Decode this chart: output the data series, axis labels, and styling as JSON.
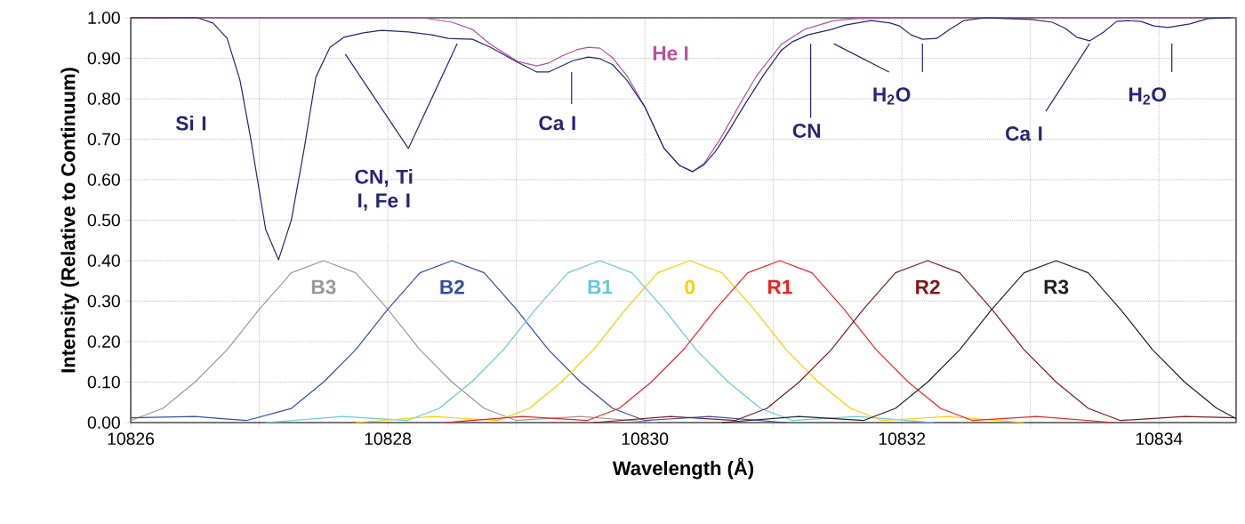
{
  "chart_data": {
    "type": "line",
    "xlabel": "Wavelength (Å)",
    "ylabel": "Intensity (Relative to Continuum)",
    "xlim": [
      10826,
      10834.6
    ],
    "ylim": [
      0,
      1
    ],
    "xticks": [
      10826,
      {
        "value": 10827,
        "label": null
      },
      10828,
      {
        "value": 10829,
        "label": null
      },
      10830,
      {
        "value": 10831,
        "label": null
      },
      10832,
      {
        "value": 10833,
        "label": null
      },
      10834
    ],
    "yticks": [
      {
        "value": 0,
        "label": "0.00"
      },
      {
        "value": 0.1,
        "label": "0.10"
      },
      {
        "value": 0.2,
        "label": "0.20"
      },
      {
        "value": 0.3,
        "label": "0.30"
      },
      {
        "value": 0.4,
        "label": "0.40"
      },
      {
        "value": 0.5,
        "label": "0.50"
      },
      {
        "value": 0.6,
        "label": "0.60"
      },
      {
        "value": 0.7,
        "label": "0.70"
      },
      {
        "value": 0.8,
        "label": "0.80"
      },
      {
        "value": 0.9,
        "label": "0.90"
      },
      {
        "value": 1,
        "label": "1.00"
      }
    ],
    "grid": true,
    "series": [
      {
        "name": "B3",
        "color": "#999999",
        "x": [
          10826,
          10826.25,
          10826.5,
          10826.75,
          10827,
          10827.25,
          10827.5,
          10827.75,
          10828,
          10828.25,
          10828.5,
          10828.75,
          10829,
          10829.5,
          10830.1
        ],
        "values": [
          0.005,
          0.035,
          0.1,
          0.18,
          0.28,
          0.37,
          0.4,
          0.37,
          0.28,
          0.18,
          0.1,
          0.035,
          0.005,
          0.015,
          0.0
        ]
      },
      {
        "name": "B2",
        "color": "#3050a8",
        "x": [
          10826,
          10826.5,
          10826.9,
          10827.25,
          10827.5,
          10827.75,
          10828,
          10828.25,
          10828.5,
          10828.75,
          10829,
          10829.25,
          10829.5,
          10829.75,
          10830,
          10830.5,
          10831.1
        ],
        "values": [
          0.012,
          0.015,
          0.005,
          0.035,
          0.1,
          0.18,
          0.28,
          0.37,
          0.4,
          0.37,
          0.28,
          0.18,
          0.1,
          0.035,
          0.005,
          0.015,
          0.0
        ]
      },
      {
        "name": "B1",
        "color": "#66c8dc",
        "x": [
          10827.05,
          10827.65,
          10828.15,
          10828.4,
          10828.65,
          10828.9,
          10829.15,
          10829.4,
          10829.65,
          10829.9,
          10830.15,
          10830.4,
          10830.65,
          10830.9,
          10831.15,
          10831.65,
          10832.25
        ],
        "values": [
          0.0,
          0.015,
          0.005,
          0.035,
          0.1,
          0.18,
          0.28,
          0.37,
          0.4,
          0.37,
          0.28,
          0.18,
          0.1,
          0.035,
          0.005,
          0.015,
          0.0
        ]
      },
      {
        "name": "0",
        "color": "#ffcc00",
        "x": [
          10827.75,
          10828.35,
          10828.85,
          10829.1,
          10829.35,
          10829.6,
          10829.85,
          10830.1,
          10830.35,
          10830.6,
          10830.85,
          10831.1,
          10831.35,
          10831.6,
          10831.85,
          10832.35,
          10832.95
        ],
        "values": [
          0.0,
          0.015,
          0.005,
          0.035,
          0.1,
          0.18,
          0.28,
          0.37,
          0.4,
          0.37,
          0.28,
          0.18,
          0.1,
          0.035,
          0.005,
          0.015,
          0.0
        ]
      },
      {
        "name": "R1",
        "color": "#ee2222",
        "x": [
          10828.45,
          10829.05,
          10829.55,
          10829.8,
          10830.05,
          10830.3,
          10830.55,
          10830.8,
          10831.05,
          10831.3,
          10831.55,
          10831.8,
          10832.05,
          10832.3,
          10832.55,
          10833.05,
          10833.65
        ],
        "values": [
          0.0,
          0.015,
          0.005,
          0.035,
          0.1,
          0.18,
          0.28,
          0.37,
          0.4,
          0.37,
          0.28,
          0.18,
          0.1,
          0.035,
          0.005,
          0.015,
          0.0
        ]
      },
      {
        "name": "R2",
        "color": "#7f1a1a",
        "x": [
          10829.6,
          10830.2,
          10830.7,
          10830.95,
          10831.2,
          10831.45,
          10831.7,
          10831.95,
          10832.2,
          10832.45,
          10832.7,
          10832.95,
          10833.2,
          10833.45,
          10833.7,
          10834.2,
          10834.6
        ],
        "values": [
          0.0,
          0.015,
          0.005,
          0.035,
          0.1,
          0.18,
          0.28,
          0.37,
          0.4,
          0.37,
          0.28,
          0.18,
          0.1,
          0.035,
          0.005,
          0.015,
          0.012
        ]
      },
      {
        "name": "R3",
        "color": "#222222",
        "x": [
          10830.6,
          10831.2,
          10831.7,
          10831.95,
          10832.2,
          10832.45,
          10832.7,
          10832.95,
          10833.2,
          10833.45,
          10833.7,
          10833.95,
          10834.2,
          10834.45,
          10834.6
        ],
        "values": [
          0.0,
          0.015,
          0.005,
          0.035,
          0.1,
          0.18,
          0.28,
          0.37,
          0.4,
          0.37,
          0.28,
          0.18,
          0.1,
          0.035,
          0.01
        ]
      },
      {
        "name": "He I",
        "color": "#b94fa0",
        "x": [
          10826,
          10828.27,
          10828.5,
          10828.66,
          10828.8,
          10829.01,
          10829.16,
          10829.25,
          10829.35,
          10829.47,
          10829.56,
          10829.65,
          10829.75,
          10829.86,
          10830,
          10830.15,
          10830.27,
          10830.37,
          10830.46,
          10830.58,
          10830.74,
          10830.87,
          10831.06,
          10831.24,
          10831.47,
          10831.65,
          10831.98,
          10834.6
        ],
        "values": [
          1.0,
          1.0,
          0.989,
          0.971,
          0.934,
          0.892,
          0.881,
          0.888,
          0.905,
          0.921,
          0.927,
          0.925,
          0.901,
          0.857,
          0.78,
          0.677,
          0.635,
          0.62,
          0.64,
          0.697,
          0.787,
          0.857,
          0.934,
          0.971,
          0.993,
          0.998,
          1.0,
          1.0
        ]
      },
      {
        "color": "#262673",
        "x": [
          10826,
          10826.52,
          10826.64,
          10826.75,
          10826.85,
          10826.93,
          10827.05,
          10827.15,
          10827.25,
          10827.35,
          10827.44,
          10827.55,
          10827.66,
          10827.81,
          10827.95,
          10828.16,
          10828.34,
          10828.47,
          10828.66,
          10828.8,
          10829.01,
          10829.16,
          10829.25,
          10829.44,
          10829.56,
          10829.65,
          10829.75,
          10829.86,
          10830,
          10830.15,
          10830.27,
          10830.37,
          10830.46,
          10830.55,
          10830.65,
          10830.78,
          10830.92,
          10831.06,
          10831.15,
          10831.27,
          10831.45,
          10831.56,
          10831.76,
          10831.91,
          10831.98,
          10832.07,
          10832.16,
          10832.27,
          10832.37,
          10832.48,
          10832.65,
          10832.81,
          10833.01,
          10833.17,
          10833.27,
          10833.36,
          10833.46,
          10833.57,
          10833.67,
          10833.76,
          10833.86,
          10833.96,
          10834.07,
          10834.24,
          10834.38,
          10834.56
        ],
        "values": [
          1.0,
          1.0,
          0.987,
          0.949,
          0.846,
          0.708,
          0.477,
          0.402,
          0.501,
          0.677,
          0.853,
          0.927,
          0.952,
          0.963,
          0.969,
          0.965,
          0.958,
          0.949,
          0.947,
          0.927,
          0.89,
          0.866,
          0.866,
          0.894,
          0.903,
          0.899,
          0.884,
          0.846,
          0.78,
          0.677,
          0.635,
          0.62,
          0.637,
          0.67,
          0.719,
          0.787,
          0.857,
          0.919,
          0.941,
          0.958,
          0.971,
          0.982,
          0.993,
          0.987,
          0.98,
          0.958,
          0.947,
          0.949,
          0.971,
          0.993,
          1.0,
          0.998,
          0.996,
          0.989,
          0.974,
          0.952,
          0.943,
          0.965,
          0.991,
          0.993,
          0.991,
          0.98,
          0.976,
          0.985,
          0.998,
          1.0
        ]
      }
    ],
    "annotations": [
      "Si I",
      "CN, Ti I, Fe I",
      {
        "text": "Ca I",
        "x": 10829.43,
        "y": 0.898
      },
      "CN",
      "H$_{2}$O",
      {
        "text": "Ca I",
        "x": 10833.46,
        "y": 0.945
      },
      {
        "text": "H$_{2}$O",
        "x": 10834.1,
        "y": 0.976
      }
    ]
  }
}
